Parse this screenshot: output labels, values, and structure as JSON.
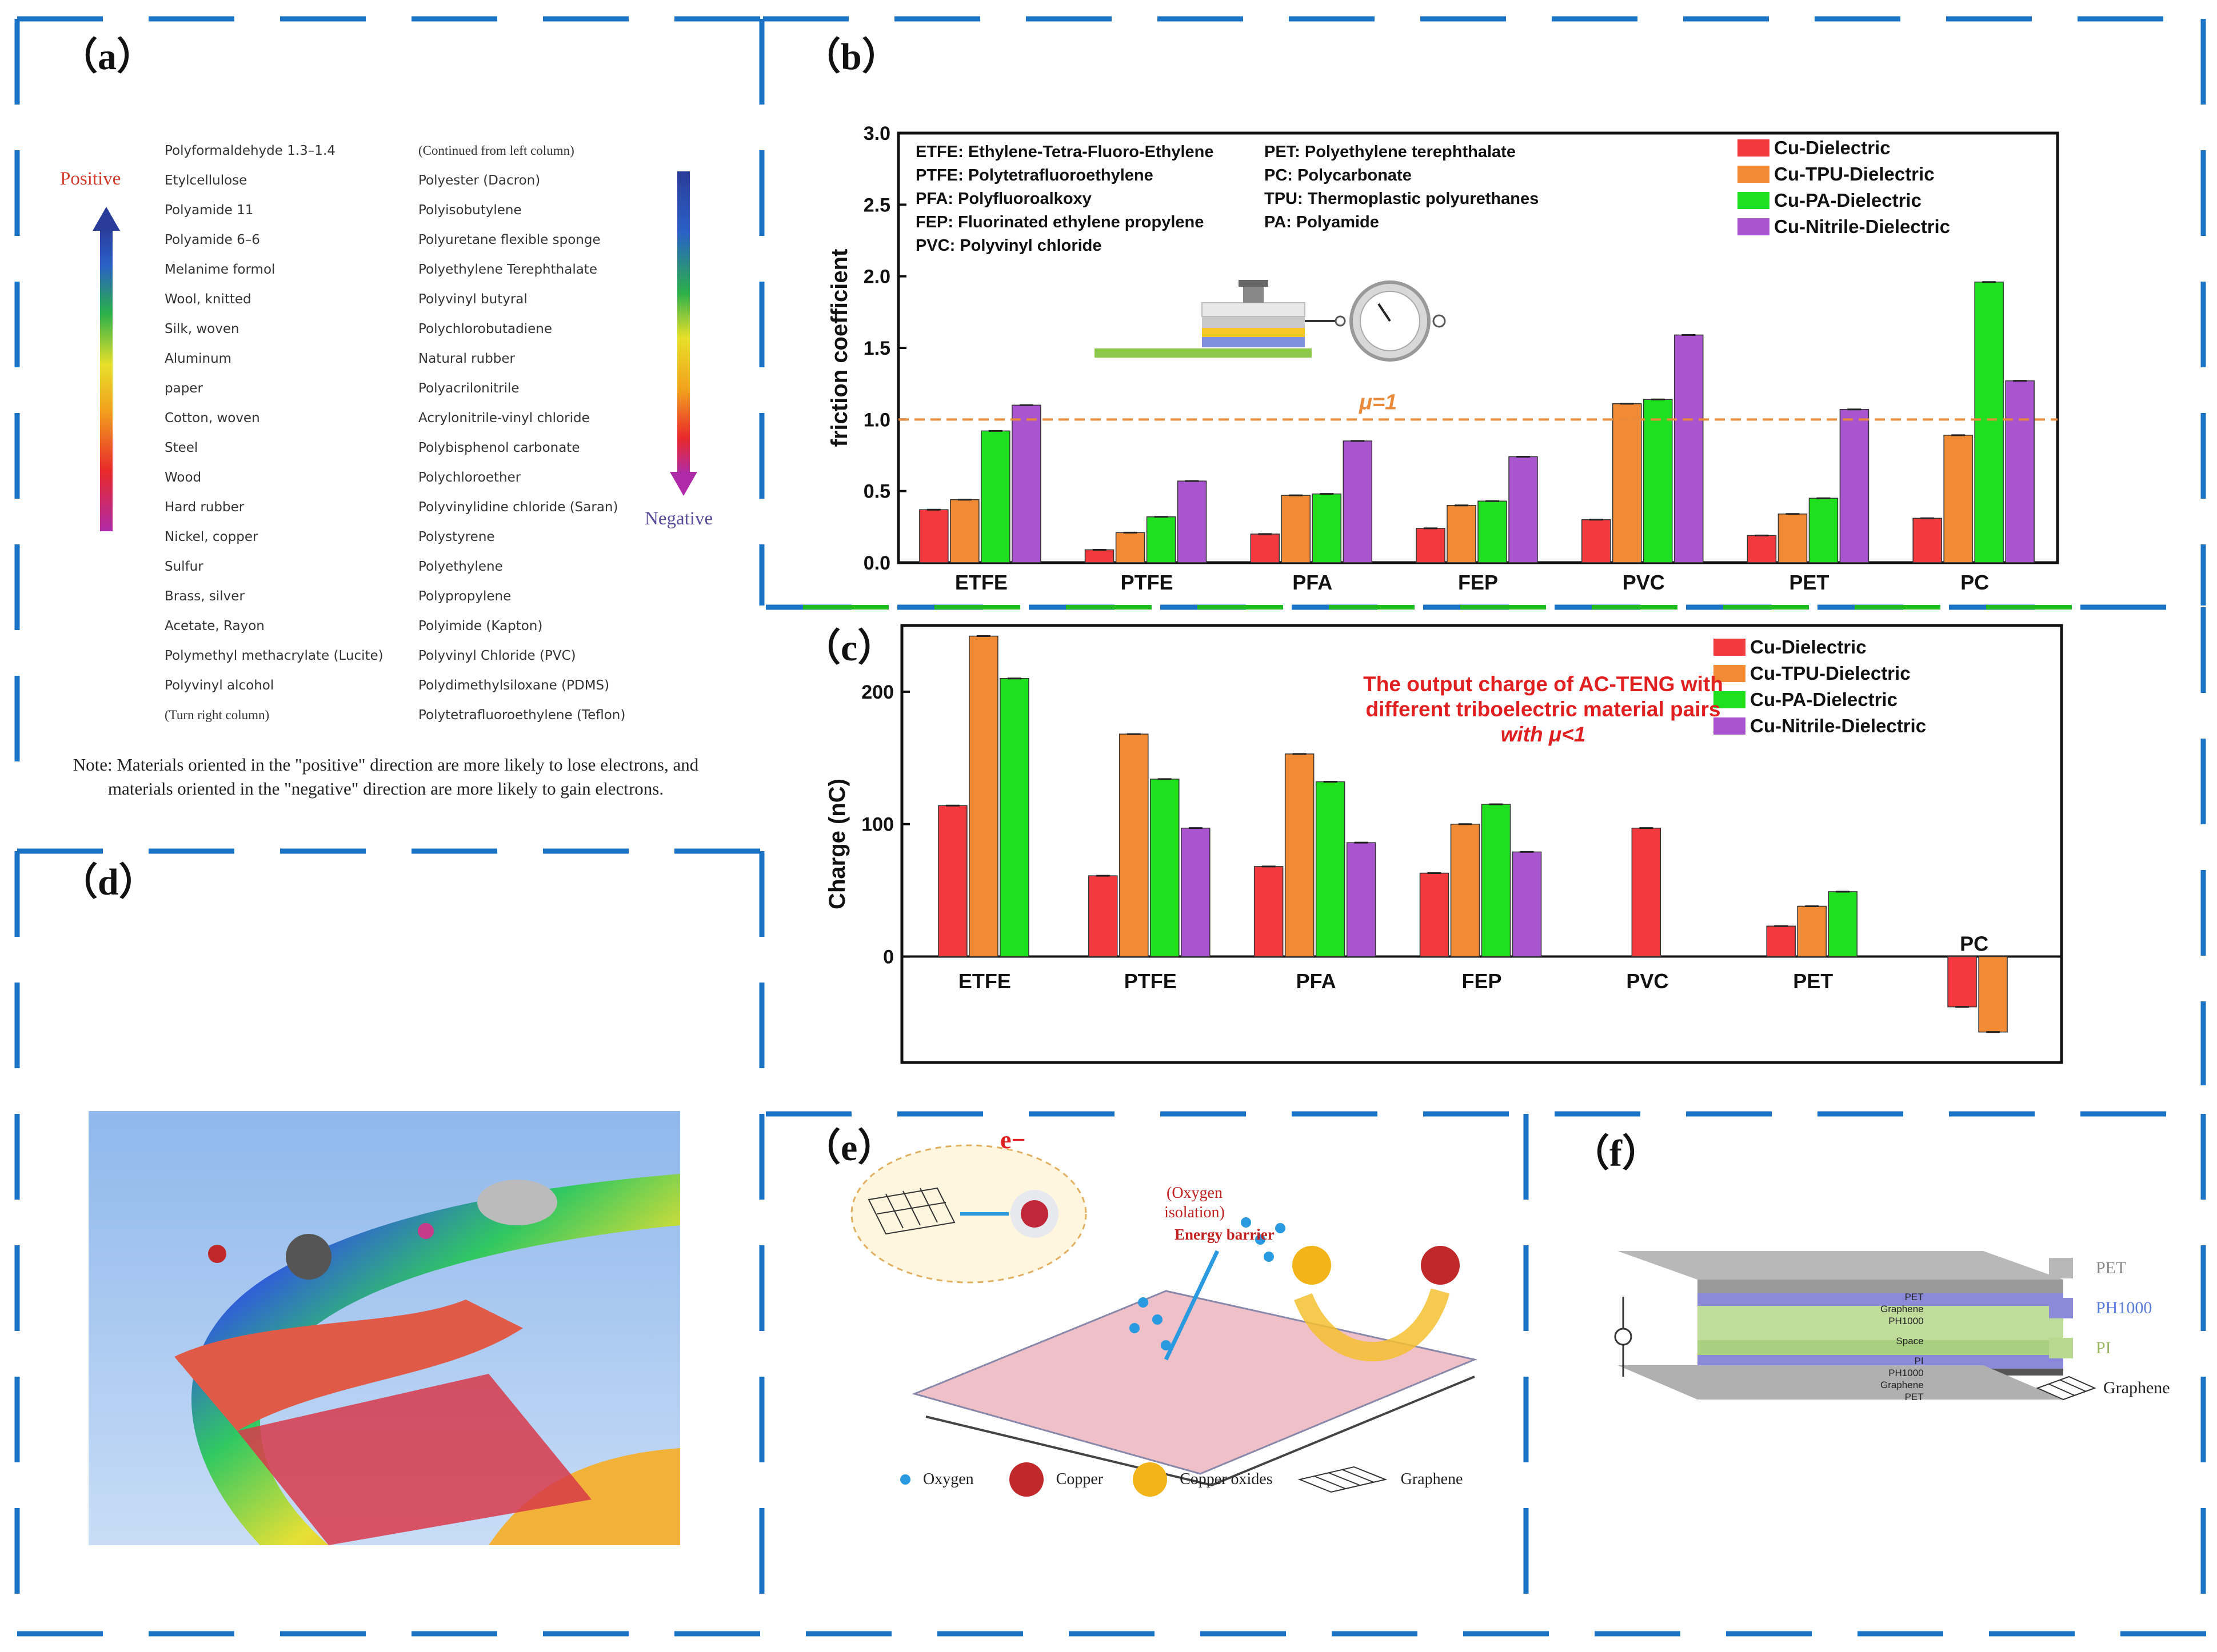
{
  "panel_labels": {
    "a": "（a）",
    "b": "（b）",
    "c": "（c）",
    "d": "（d）",
    "e": "（e）",
    "f": "（f）"
  },
  "series_colors": {
    "Cu-Dielectric": "#f23a3e",
    "Cu-TPU-Dielectric": "#f08a34",
    "Cu-PA-Dielectric": "#1fe01f",
    "Cu-Nitrile-Dielectric": "#a955d0"
  },
  "panel_a": {
    "positive_label": "Positive",
    "negative_label": "Negative",
    "left_column": [
      "Polyformaldehyde 1.3–1.4",
      "Etylcellulose",
      "Polyamide 11",
      "Polyamide 6–6",
      "Melanime formol",
      "Wool, knitted",
      "Silk, woven",
      "Aluminum",
      "paper",
      "Cotton, woven",
      "Steel",
      "Wood",
      "Hard rubber",
      "Nickel, copper",
      "Sulfur",
      "Brass, silver",
      "Acetate, Rayon",
      "Polymethyl methacrylate (Lucite)",
      "Polyvinyl alcohol",
      "(Turn right column)"
    ],
    "right_column": [
      "(Continued from left column)",
      "Polyester (Dacron)",
      "Polyisobutylene",
      "Polyuretane flexible sponge",
      "Polyethylene Terephthalate",
      "Polyvinyl butyral",
      "Polychlorobutadiene",
      "Natural rubber",
      "Polyacrilonitrile",
      "Acrylonitrile-vinyl chloride",
      "Polybisphenol carbonate",
      "Polychloroether",
      "Polyvinylidine chloride (Saran)",
      "Polystyrene",
      "Polyethylene",
      "Polypropylene",
      "Polyimide (Kapton)",
      "Polyvinyl Chloride (PVC)",
      "Polydimethylsiloxane (PDMS)",
      "Polytetrafluoroethylene (Teflon)"
    ],
    "note_line1": "Note: Materials oriented in the \"positive\" direction are more likely to lose electrons, and",
    "note_line2": "materials oriented in the \"negative\" direction are more likely to gain electrons."
  },
  "panel_b_text": {
    "abbr_left": [
      "ETFE: Ethylene-Tetra-Fluoro-Ethylene",
      "PTFE: Polytetrafluoroethylene",
      "PFA: Polyfluoroalkoxy",
      "FEP: Fluorinated ethylene propylene",
      "PVC: Polyvinyl chloride"
    ],
    "abbr_right": [
      "PET: Polyethylene terephthalate",
      "PC: Polycarbonate",
      "TPU: Thermoplastic polyurethanes",
      "PA: Polyamide"
    ],
    "mu_label": "μ=1"
  },
  "panel_c_text": {
    "annotation_line1": "The output charge of AC-TENG with",
    "annotation_line2": "different triboelectric material pairs",
    "annotation_line3": "with μ<1",
    "pc_label": "PC"
  },
  "panel_e": {
    "e_label": "e−",
    "oxygen_isolation": "(Oxygen isolation)",
    "energy_barrier": "Energy barrier",
    "legend": [
      "Oxygen",
      "Copper",
      "Copper oxides",
      "Graphene"
    ]
  },
  "panel_f": {
    "legend": [
      "PET",
      "PH1000",
      "PI",
      "Graphene"
    ],
    "layer_labels": [
      "PET",
      "Graphene",
      "PH1000",
      "Space",
      "PI",
      "PH1000",
      "Graphene",
      "PET"
    ]
  },
  "chart_data": [
    {
      "type": "bar",
      "title": "",
      "xlabel": "",
      "ylabel": "friction coefficient",
      "ylim": [
        0,
        3.0
      ],
      "yticks": [
        "0.0",
        "0.5",
        "1.0",
        "1.5",
        "2.0",
        "2.5",
        "3.0"
      ],
      "categories": [
        "ETFE",
        "PTFE",
        "PFA",
        "FEP",
        "PVC",
        "PET",
        "PC"
      ],
      "series": [
        {
          "name": "Cu-Dielectric",
          "values": [
            0.37,
            0.09,
            0.2,
            0.24,
            0.3,
            0.19,
            0.31
          ]
        },
        {
          "name": "Cu-TPU-Dielectric",
          "values": [
            0.44,
            0.21,
            0.47,
            0.4,
            1.11,
            0.34,
            0.89
          ]
        },
        {
          "name": "Cu-PA-Dielectric",
          "values": [
            0.92,
            0.32,
            0.48,
            0.43,
            1.14,
            0.45,
            1.96
          ]
        },
        {
          "name": "Cu-Nitrile-Dielectric",
          "values": [
            1.1,
            0.57,
            0.85,
            0.74,
            1.59,
            1.07,
            1.27
          ]
        }
      ],
      "reference_line": 1.0,
      "legend": "top-right"
    },
    {
      "type": "bar",
      "title": "",
      "xlabel": "",
      "ylabel": "Charge (nC)",
      "ylim": [
        -80,
        250
      ],
      "yticks": [
        "0",
        "100",
        "200"
      ],
      "categories": [
        "ETFE",
        "PTFE",
        "PFA",
        "FEP",
        "PVC",
        "PET",
        "PC"
      ],
      "series": [
        {
          "name": "Cu-Dielectric",
          "values": [
            114,
            61,
            68,
            63,
            97,
            23,
            -38
          ]
        },
        {
          "name": "Cu-TPU-Dielectric",
          "values": [
            242,
            168,
            153,
            100,
            null,
            38,
            -57
          ]
        },
        {
          "name": "Cu-PA-Dielectric",
          "values": [
            210,
            134,
            132,
            115,
            null,
            49,
            null
          ]
        },
        {
          "name": "Cu-Nitrile-Dielectric",
          "values": [
            null,
            97,
            86,
            79,
            null,
            null,
            null
          ]
        }
      ],
      "legend": "top-right"
    }
  ]
}
